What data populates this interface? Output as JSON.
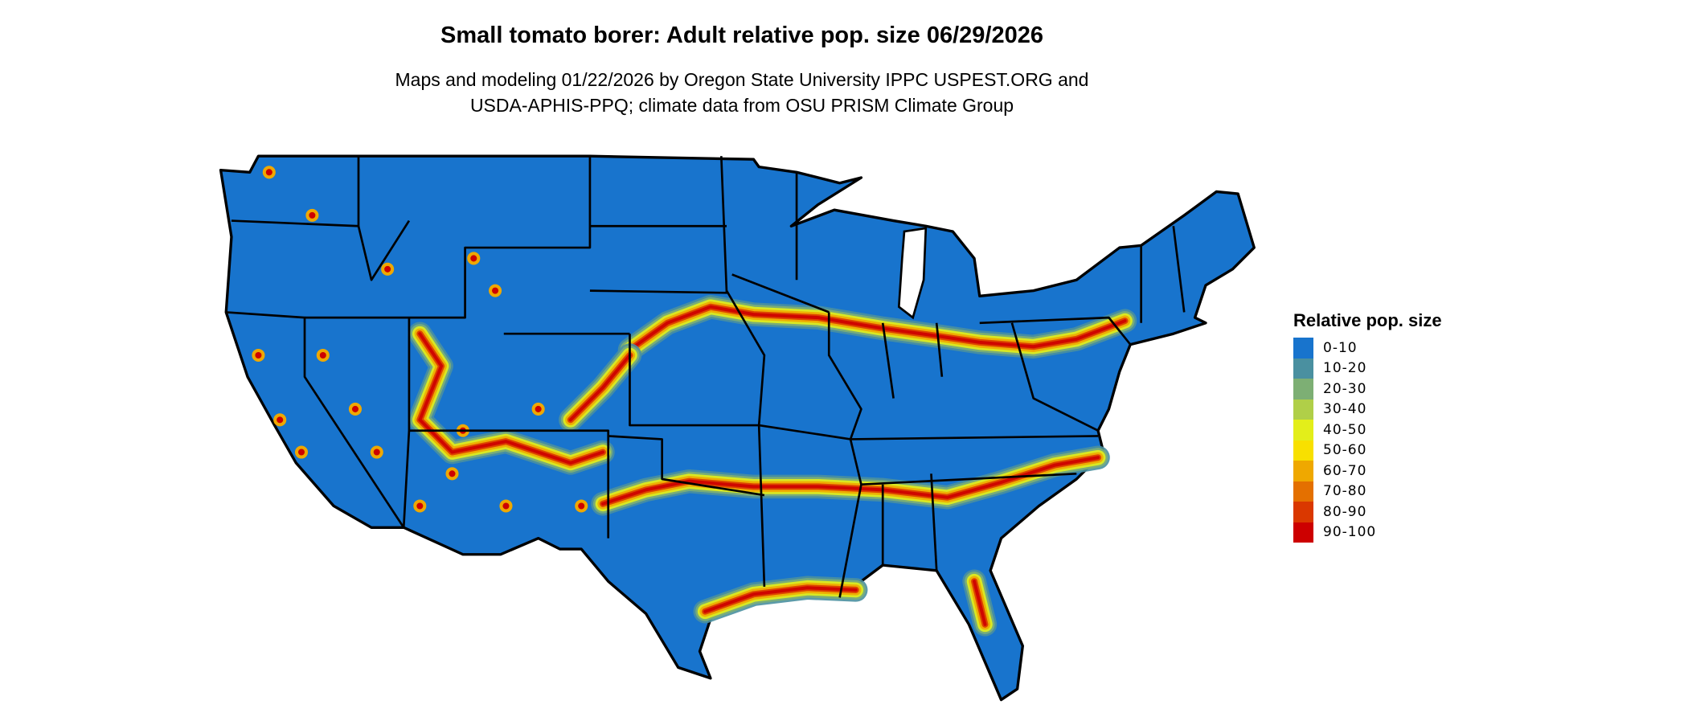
{
  "title": "Small tomato borer: Adult relative pop. size 06/29/2026",
  "subtitle_lines": [
    "Maps and modeling 01/22/2026 by Oregon State University IPPC USPEST.ORG and",
    "USDA-APHIS-PPQ; climate data from OSU PRISM Climate Group"
  ],
  "legend": {
    "title": "Relative pop. size",
    "items": [
      {
        "label": "0-10",
        "color": "#1874CD"
      },
      {
        "label": "10-20",
        "color": "#4A90A0"
      },
      {
        "label": "20-30",
        "color": "#7DAF74"
      },
      {
        "label": "30-40",
        "color": "#B0CF48"
      },
      {
        "label": "40-50",
        "color": "#E3EE1A"
      },
      {
        "label": "50-60",
        "color": "#F8E000"
      },
      {
        "label": "60-70",
        "color": "#EFA800"
      },
      {
        "label": "70-80",
        "color": "#E47000"
      },
      {
        "label": "80-90",
        "color": "#DA3800"
      },
      {
        "label": "90-100",
        "color": "#CD0000"
      }
    ]
  },
  "map": {
    "region": "Contiguous United States",
    "base_color": "#1874CD",
    "border_color": "#000000"
  }
}
